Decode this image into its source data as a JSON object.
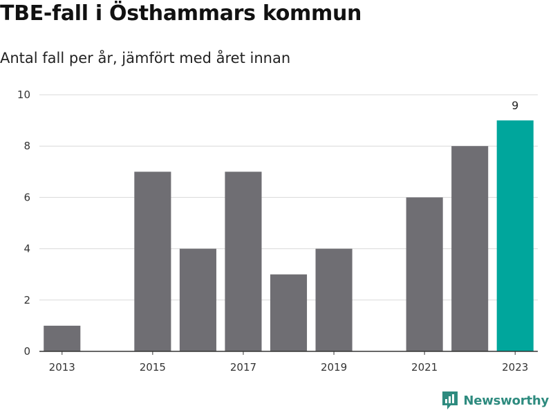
{
  "header": {
    "title": "TBE-fall i Östhammars kommun",
    "subtitle": "Antal fall per år, jämfört med året innan"
  },
  "brand": {
    "name": "Newsworthy",
    "color": "#2e8b7f"
  },
  "colors": {
    "bar": "#6f6e73",
    "highlight": "#00a69c",
    "grid": "#d9d9d9",
    "axis": "#333333"
  },
  "chart_data": {
    "type": "bar",
    "title": "TBE-fall i Östhammars kommun",
    "subtitle": "Antal fall per år, jämfört med året innan",
    "xlabel": "",
    "ylabel": "",
    "categories": [
      "2013",
      "2014",
      "2015",
      "2016",
      "2017",
      "2018",
      "2019",
      "2020",
      "2021",
      "2022",
      "2023"
    ],
    "values": [
      1,
      0,
      7,
      4,
      7,
      3,
      4,
      0,
      6,
      8,
      9
    ],
    "x_tick_labels": [
      "2013",
      "2015",
      "2017",
      "2019",
      "2021",
      "2023"
    ],
    "y_ticks": [
      0,
      2,
      4,
      6,
      8,
      10
    ],
    "ylim": [
      0,
      10
    ],
    "highlight_category": "2023",
    "data_labels": [
      {
        "category": "2023",
        "text": "9"
      }
    ],
    "grid": true,
    "legend": "none"
  }
}
